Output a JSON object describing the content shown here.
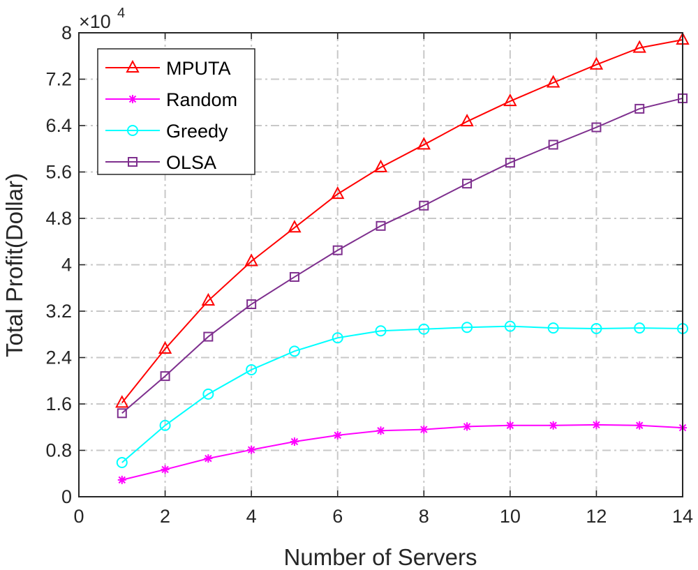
{
  "chart_data": {
    "type": "line",
    "xlabel": "Number of Servers",
    "ylabel": "Total Profit(Dollar)",
    "y_multiplier_base": "×10",
    "y_multiplier_exp": "4",
    "xlim": [
      0,
      14
    ],
    "ylim": [
      0,
      8
    ],
    "xticks": [
      0,
      2,
      4,
      6,
      8,
      10,
      12,
      14
    ],
    "yticks": [
      0,
      0.8,
      1.6,
      2.4,
      3.2,
      4,
      4.8,
      5.6,
      6.4,
      7.2,
      8
    ],
    "xtick_labels": [
      "0",
      "2",
      "4",
      "6",
      "8",
      "10",
      "12",
      "14"
    ],
    "ytick_labels": [
      "0",
      "0.8",
      "1.6",
      "2.4",
      "3.2",
      "4",
      "4.8",
      "5.6",
      "6.4",
      "7.2",
      "8"
    ],
    "grid": true,
    "legend_position": "top-left",
    "x": [
      1,
      2,
      3,
      4,
      5,
      6,
      7,
      8,
      9,
      10,
      11,
      12,
      13,
      14
    ],
    "series": [
      {
        "name": "MPUTA",
        "color": "#ff0000",
        "marker": "triangle",
        "values": [
          1.62,
          2.55,
          3.38,
          4.06,
          4.64,
          5.22,
          5.68,
          6.07,
          6.47,
          6.82,
          7.14,
          7.45,
          7.74,
          7.88
        ]
      },
      {
        "name": "Random",
        "color": "#ff00ff",
        "marker": "asterisk",
        "values": [
          0.29,
          0.47,
          0.66,
          0.81,
          0.95,
          1.06,
          1.14,
          1.16,
          1.21,
          1.23,
          1.23,
          1.24,
          1.23,
          1.19
        ]
      },
      {
        "name": "Greedy",
        "color": "#00ffff",
        "marker": "circle",
        "values": [
          0.59,
          1.23,
          1.77,
          2.19,
          2.51,
          2.74,
          2.86,
          2.89,
          2.92,
          2.94,
          2.91,
          2.9,
          2.91,
          2.9
        ]
      },
      {
        "name": "OLSA",
        "color": "#7e2f8e",
        "marker": "square",
        "values": [
          1.44,
          2.08,
          2.76,
          3.32,
          3.79,
          4.25,
          4.67,
          5.02,
          5.4,
          5.76,
          6.07,
          6.37,
          6.69,
          6.87
        ]
      }
    ]
  }
}
